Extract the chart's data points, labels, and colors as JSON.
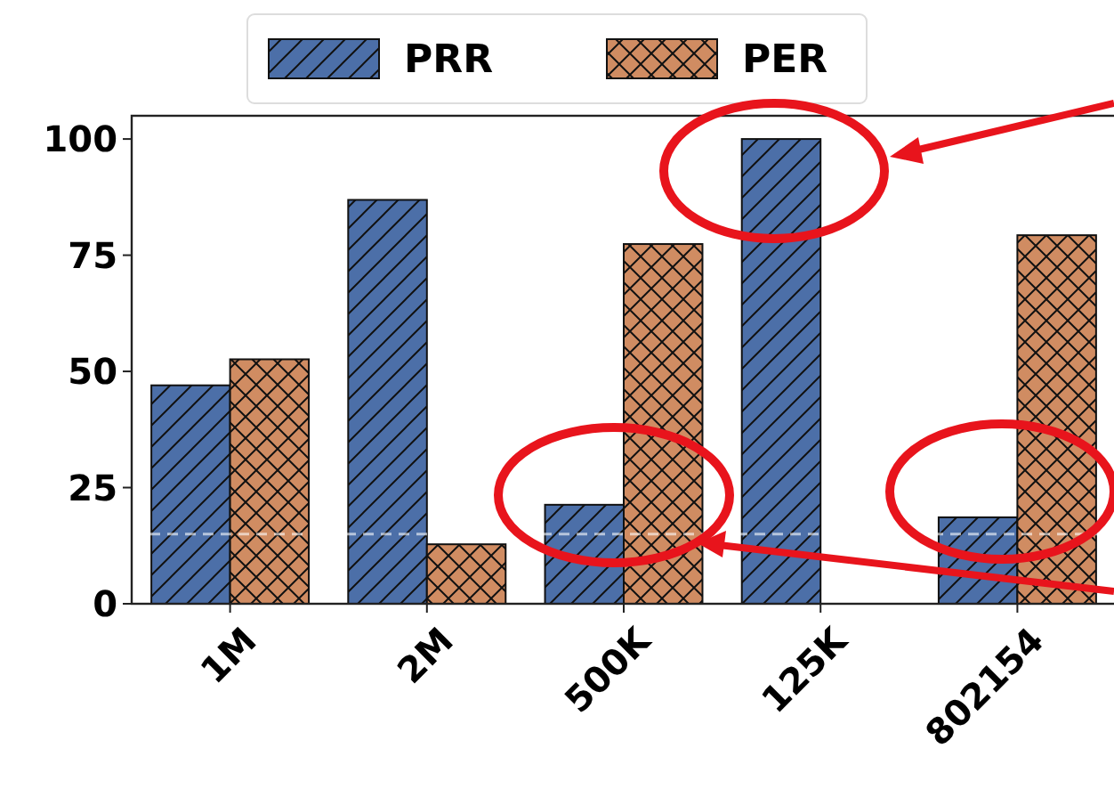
{
  "chart_data": {
    "type": "bar",
    "categories": [
      "1M",
      "2M",
      "500K",
      "125K",
      "802154"
    ],
    "series": [
      {
        "name": "PRR",
        "color": "#4c6fa8",
        "values": [
          47,
          86.9,
          21.3,
          100,
          18.6
        ]
      },
      {
        "name": "PER",
        "color": "#d08c62",
        "values": [
          52.6,
          12.8,
          77.4,
          0,
          79.3
        ]
      }
    ],
    "ylim": [
      0,
      105
    ],
    "yticks": [
      0,
      25,
      50,
      75,
      100
    ],
    "grid": false,
    "legend": "top",
    "ref_lines": [
      {
        "axis": "y",
        "value": 15,
        "color": "#ffffff",
        "line_style": "dashed"
      }
    ]
  }
}
